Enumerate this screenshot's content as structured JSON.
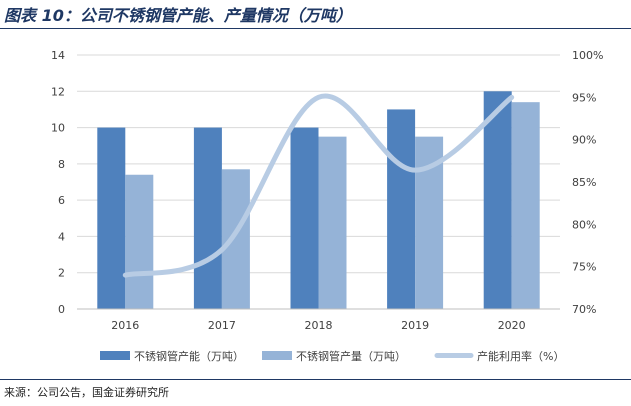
{
  "header": {
    "title": "图表 10：公司不锈钢管产能、产量情况（万吨）"
  },
  "footer": {
    "source": "来源：公司公告，国金证券研究所"
  },
  "chart_data": {
    "type": "bar",
    "categories": [
      "2016",
      "2017",
      "2018",
      "2019",
      "2020"
    ],
    "series": [
      {
        "name": "不锈钢管产能（万吨）",
        "type": "bar",
        "axis": "left",
        "color": "#4f81bd",
        "values": [
          10.0,
          10.0,
          10.0,
          11.0,
          12.0
        ]
      },
      {
        "name": "不锈钢管产量（万吨）",
        "type": "bar",
        "axis": "left",
        "color": "#95b3d7",
        "values": [
          7.4,
          7.7,
          9.5,
          9.5,
          11.4
        ]
      },
      {
        "name": "产能利用率（%）",
        "type": "line",
        "axis": "right",
        "color": "#b8cce4",
        "values": [
          74.0,
          77.0,
          95.0,
          86.4,
          95.0
        ]
      }
    ],
    "y_left": {
      "min": 0,
      "max": 14,
      "step": 2,
      "tick_labels": [
        "0",
        "2",
        "4",
        "6",
        "8",
        "10",
        "12",
        "14"
      ]
    },
    "y_right": {
      "min": 70,
      "max": 100,
      "step": 5,
      "tick_labels": [
        "70%",
        "75%",
        "80%",
        "85%",
        "90%",
        "95%",
        "100%"
      ]
    },
    "grid": true,
    "legend_position": "bottom"
  }
}
